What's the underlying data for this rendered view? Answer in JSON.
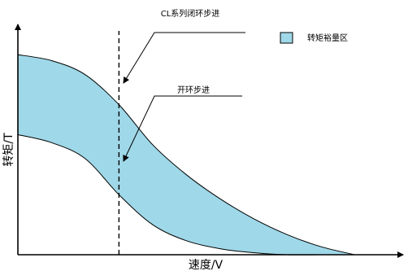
{
  "chart_data": {
    "type": "area",
    "xlabel": "速度/V",
    "ylabel": "转矩/T",
    "legend": {
      "label": "转矩裕量区",
      "position": "top-right",
      "color": "#9fd8e8"
    },
    "annotations": [
      {
        "text": "CL系列闭环步进",
        "target": "upper-curve"
      },
      {
        "text": "开环步进",
        "target": "lower-curve"
      }
    ],
    "band_fill": "#9fd8e8",
    "grid": false,
    "x": [
      0,
      10,
      20,
      30,
      40,
      50,
      60,
      70,
      80,
      90,
      100
    ],
    "series": [
      {
        "values": [
          100,
          97,
          90,
          75,
          55,
          40,
          28,
          18,
          10,
          4,
          0
        ]
      },
      {
        "values": [
          60,
          56,
          48,
          30,
          15,
          7,
          3,
          1,
          0,
          0,
          0
        ]
      }
    ],
    "ylim": [
      0,
      120
    ],
    "xlim": [
      0,
      110
    ],
    "vline_x": 30
  }
}
